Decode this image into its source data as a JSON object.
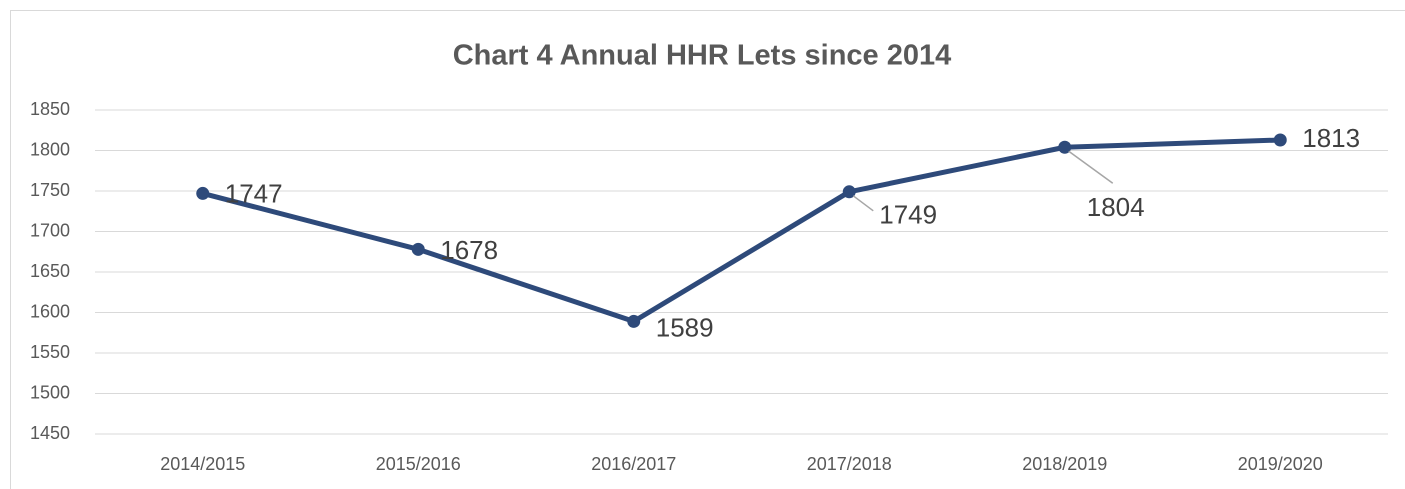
{
  "chart_data": {
    "type": "line",
    "title": "Chart 4 Annual HHR Lets since 2014",
    "categories": [
      "2014/2015",
      "2015/2016",
      "2016/2017",
      "2017/2018",
      "2018/2019",
      "2019/2020"
    ],
    "series": [
      {
        "name": "HHR Lets",
        "color": "#2e4a7a",
        "values": [
          1747,
          1678,
          1589,
          1749,
          1804,
          1813
        ]
      }
    ],
    "ylim": [
      1450,
      1850
    ],
    "yticks": [
      1450,
      1500,
      1550,
      1600,
      1650,
      1700,
      1750,
      1800,
      1850
    ],
    "grid": true
  }
}
